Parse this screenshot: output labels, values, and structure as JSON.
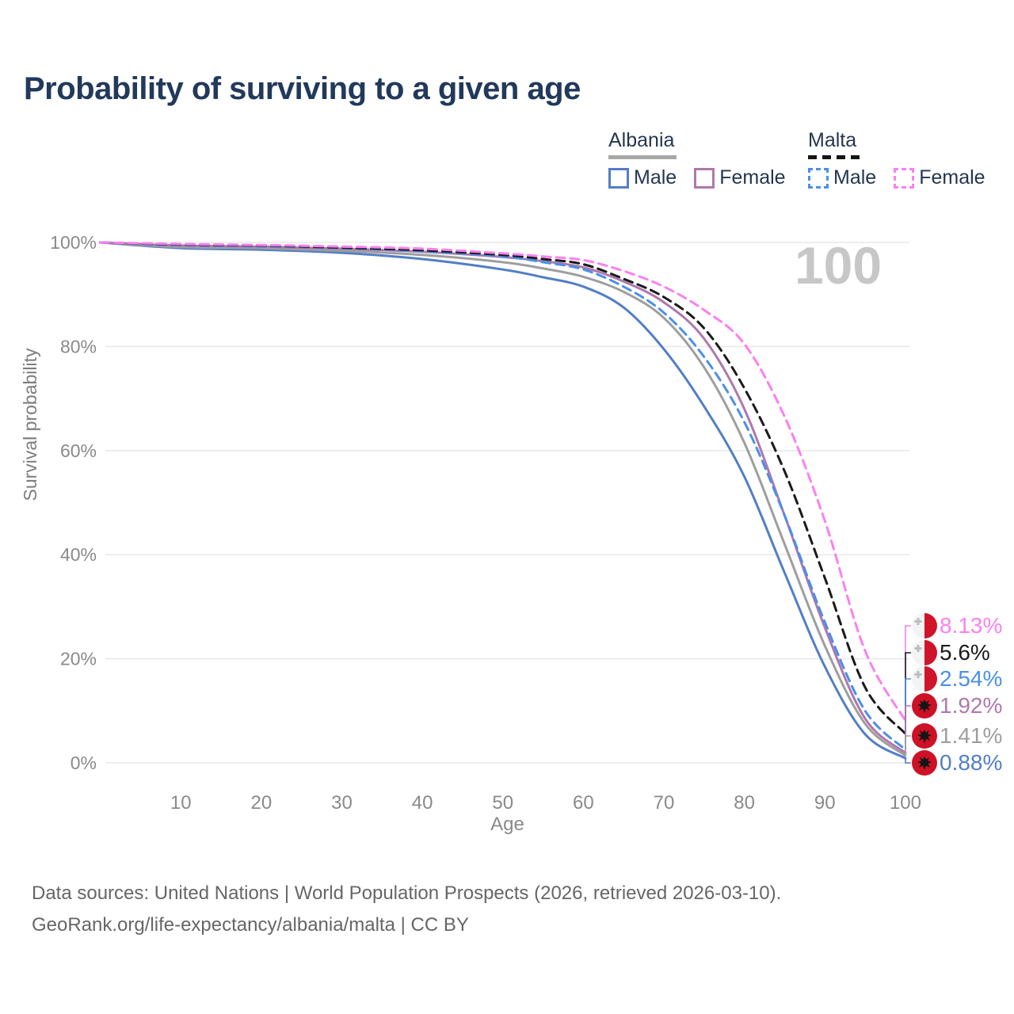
{
  "title": "Probability of surviving to a given age",
  "watermark_age": "100",
  "legend": {
    "position": "top-right",
    "groups": [
      {
        "country": "Albania",
        "line_style": "solid",
        "swatch_color": "#a8a8a8",
        "items": [
          {
            "label": "Male",
            "color": "#527ec6"
          },
          {
            "label": "Female",
            "color": "#b077ae"
          }
        ]
      },
      {
        "country": "Malta",
        "line_style": "dashed",
        "swatch_color": "#151515",
        "items": [
          {
            "label": "Male",
            "color": "#4a90e8"
          },
          {
            "label": "Female",
            "color": "#fb80f1"
          }
        ]
      }
    ]
  },
  "chart_data": {
    "type": "line",
    "title": "Probability of surviving to a given age",
    "xlabel": "Age",
    "ylabel": "Survival probability",
    "xlim": [
      0,
      100
    ],
    "ylim": [
      0,
      100
    ],
    "grid": "horizontal",
    "x_ticks": [
      "10",
      "20",
      "30",
      "40",
      "50",
      "60",
      "70",
      "80",
      "90",
      "100"
    ],
    "x_tick_values": [
      10,
      20,
      30,
      40,
      50,
      60,
      70,
      80,
      90,
      100
    ],
    "y_ticks": [
      "0%",
      "20%",
      "40%",
      "60%",
      "80%",
      "100%"
    ],
    "y_tick_values": [
      0,
      20,
      40,
      60,
      80,
      100
    ],
    "x": [
      0,
      10,
      20,
      30,
      40,
      50,
      55,
      60,
      65,
      70,
      75,
      80,
      85,
      90,
      95,
      100
    ],
    "series": [
      {
        "name": "Albania Male",
        "country": "Albania",
        "sex": "Male",
        "color": "#527ec6",
        "dashed": false,
        "end_label": "0.88%",
        "end_value": 0.88,
        "values": [
          100,
          98.9,
          98.6,
          98.0,
          96.8,
          94.8,
          93.3,
          91.5,
          87.5,
          79.5,
          68.5,
          55.0,
          36.5,
          18.5,
          5.5,
          0.88
        ]
      },
      {
        "name": "Albania Both sexes",
        "country": "Albania",
        "sex": "Both sexes",
        "color": "#9e9e9e",
        "dashed": false,
        "end_label": "1.41%",
        "end_value": 1.41,
        "values": [
          100,
          99.1,
          98.9,
          98.4,
          97.6,
          96.2,
          95.0,
          93.4,
          90.5,
          85.5,
          76.0,
          61.5,
          42.0,
          22.5,
          7.5,
          1.41
        ]
      },
      {
        "name": "Albania Female",
        "country": "Albania",
        "sex": "Female",
        "color": "#b077ae",
        "dashed": false,
        "end_label": "1.92%",
        "end_value": 1.92,
        "values": [
          100,
          99.4,
          99.2,
          98.8,
          98.2,
          97.2,
          96.4,
          95.2,
          92.5,
          88.5,
          81.5,
          68.0,
          47.5,
          26.0,
          8.5,
          1.92
        ]
      },
      {
        "name": "Malta Male",
        "country": "Malta",
        "sex": "Male",
        "color": "#4a90e8",
        "dashed": true,
        "end_label": "2.54%",
        "end_value": 2.54,
        "values": [
          100,
          99.5,
          99.3,
          98.9,
          98.3,
          97.3,
          96.2,
          94.8,
          91.5,
          86.5,
          78.0,
          65.5,
          47.5,
          27.0,
          10.0,
          2.54
        ]
      },
      {
        "name": "Malta Both sexes",
        "country": "Malta",
        "sex": "Both sexes",
        "color": "#1a1a1a",
        "dashed": true,
        "end_label": "5.6%",
        "end_value": 5.6,
        "values": [
          100,
          99.6,
          99.4,
          99.0,
          98.5,
          97.6,
          96.8,
          95.8,
          93.0,
          89.5,
          83.5,
          72.0,
          56.0,
          35.5,
          14.5,
          5.6
        ]
      },
      {
        "name": "Malta Female",
        "country": "Malta",
        "sex": "Female",
        "color": "#fb80f1",
        "dashed": true,
        "end_label": "8.13%",
        "end_value": 8.13,
        "values": [
          100,
          99.7,
          99.5,
          99.2,
          98.8,
          97.9,
          97.3,
          96.6,
          94.5,
          91.5,
          87.0,
          80.5,
          66.5,
          46.5,
          21.5,
          8.13
        ]
      }
    ],
    "flag_colors": {
      "red": "#ce1126",
      "malta_red": "#cf142b",
      "malta_white": "#f3f3f3",
      "cross_gray": "#b9bec4"
    }
  },
  "footer": {
    "line1": "Data sources: United Nations | World Population Prospects (2026, retrieved 2026-03-10).",
    "line2": "GeoRank.org/life-expectancy/albania/malta | CC BY"
  }
}
